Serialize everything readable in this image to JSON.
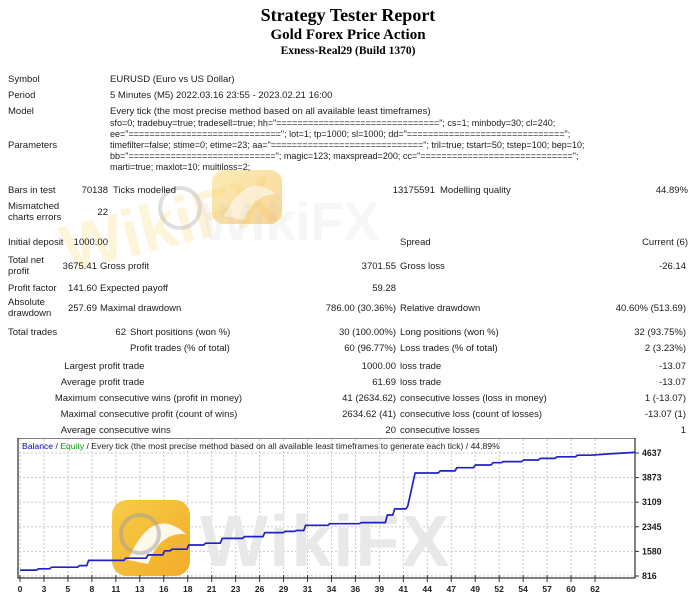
{
  "header": {
    "title": "Strategy Tester Report",
    "ea_name": "Gold Forex Price Action",
    "server_build": "Exness-Real29 (Build 1370)"
  },
  "watermark": {
    "text": "WikiFX"
  },
  "fields": {
    "symbol_label": "Symbol",
    "symbol": "EURUSD (Euro vs US Dollar)",
    "period_label": "Period",
    "period": "5 Minutes (M5) 2022.03.16 23:55 - 2023.02.21 16:00",
    "model_label": "Model",
    "model": "Every tick (the most precise method based on all available least timeframes)",
    "parameters_label": "Parameters",
    "parameters_lines": [
      "sfo=0; tradebuy=true; tradesell=true; hh=\"===============================\"; cs=1; minbody=30; cl=240;",
      "ee=\"=============================\"; lot=1; tp=1000; sl=1000; dd=\"==============================\";",
      "timefilter=false; stime=0; etime=23; aa=\"=============================\"; tril=true; tstart=50; tstep=100; bep=10;",
      "bb=\"============================\"; magic=123; maxspread=200; cc=\"=============================\";",
      "marti=true; maxlot=10; multiloss=2;"
    ],
    "bars_label": "Bars in test",
    "bars": "70138",
    "ticks_label": "Ticks modelled",
    "ticks": "13175591",
    "quality_label": "Modelling quality",
    "quality": "44.89%",
    "mismatch_label": "Mismatched charts errors",
    "mismatch": "22",
    "initial_label": "Initial deposit",
    "initial": "1000.00",
    "spread_label": "Spread",
    "spread_value": "Current (6)",
    "net_label": "Total net profit",
    "net": "3675.41",
    "gross_profit_label": "Gross profit",
    "gross_profit": "3701.55",
    "gross_loss_label": "Gross loss",
    "gross_loss": "-26.14",
    "pf_label": "Profit factor",
    "pf": "141.60",
    "ep_label": "Expected payoff",
    "ep": "59.28",
    "ad_label": "Absolute drawdown",
    "ad": "257.69",
    "md_label": "Maximal drawdown",
    "md": "786.00 (30.36%)",
    "rd_label": "Relative drawdown",
    "rd": "40.60% (513.69)",
    "tt_label": "Total trades",
    "tt": "62",
    "short_label": "Short positions (won %)",
    "short": "30 (100.00%)",
    "long_label": "Long positions (won %)",
    "long": "32 (93.75%)",
    "ptr_label": "Profit trades (% of total)",
    "ptr": "60 (96.77%)",
    "ltr_label": "Loss trades (% of total)",
    "ltr": "2 (3.23%)",
    "largest_label": "Largest",
    "largest_p_label": "profit trade",
    "largest_p": "1000.00",
    "largest_l_label": "loss trade",
    "largest_l": "-13.07",
    "avg_label": "Average",
    "avg_p_label": "profit trade",
    "avg_p": "61.69",
    "avg_l_label": "loss trade",
    "avg_l": "-13.07",
    "maxw_label": "Maximum",
    "maxw_p_label": "consecutive wins (profit in money)",
    "maxw_p": "41 (2634.62)",
    "maxw_l_label": "consecutive losses (loss in money)",
    "maxw_l": "1 (-13.07)",
    "maxc_label": "Maximal",
    "maxc_p_label": "consecutive profit (count of wins)",
    "maxc_p": "2634.62 (41)",
    "maxc_l_label": "consecutive loss (count of losses)",
    "maxc_l": "-13.07 (1)",
    "avgc_label": "Average",
    "avgc_p_label": "consecutive wins",
    "avgc_p": "20",
    "avgc_l_label": "consecutive losses",
    "avgc_l": "1"
  },
  "chart_data": {
    "type": "line",
    "legend": {
      "balance_label": "Balance",
      "equity_label": "Equity",
      "sep": " / ",
      "model_text": "Every tick (the most precise method based on all available least timeframes to generate each tick)",
      "sep2": " / ",
      "quality": "44.89%"
    },
    "xlabel": "",
    "ylabel": "",
    "x_ticks": [
      0,
      3,
      5,
      8,
      11,
      13,
      16,
      18,
      21,
      23,
      26,
      29,
      31,
      34,
      36,
      39,
      41,
      44,
      47,
      49,
      52,
      54,
      57,
      60,
      62
    ],
    "y_ticks": [
      4637,
      3873,
      3109,
      2345,
      1580,
      816
    ],
    "x_range": [
      0,
      66.3
    ],
    "y_range": [
      816,
      5160
    ],
    "grid": true,
    "series": [
      {
        "name": "Balance",
        "color": "#2121c8",
        "points": [
          [
            0,
            1000
          ],
          [
            1.8,
            1000
          ],
          [
            2,
            1040
          ],
          [
            3.2,
            1040
          ],
          [
            3.4,
            1090
          ],
          [
            6.2,
            1090
          ],
          [
            6.4,
            1140
          ],
          [
            7.2,
            1140
          ],
          [
            7.4,
            1300
          ],
          [
            11.2,
            1300
          ],
          [
            11.4,
            1370
          ],
          [
            13.6,
            1370
          ],
          [
            13.8,
            1470
          ],
          [
            15.4,
            1470
          ],
          [
            15.6,
            1600
          ],
          [
            16.2,
            1600
          ],
          [
            16.4,
            1650
          ],
          [
            18,
            1650
          ],
          [
            18.2,
            1780
          ],
          [
            19.8,
            1780
          ],
          [
            20,
            1835
          ],
          [
            21.6,
            1835
          ],
          [
            21.8,
            1985
          ],
          [
            24,
            1985
          ],
          [
            24.2,
            2040
          ],
          [
            26.2,
            2040
          ],
          [
            26.4,
            2165
          ],
          [
            28.4,
            2165
          ],
          [
            28.6,
            2200
          ],
          [
            29.6,
            2200
          ],
          [
            29.8,
            2230
          ],
          [
            30.6,
            2230
          ],
          [
            30.8,
            2390
          ],
          [
            33.2,
            2390
          ],
          [
            33.4,
            2440
          ],
          [
            36.6,
            2440
          ],
          [
            36.8,
            2475
          ],
          [
            39.4,
            2475
          ],
          [
            39.6,
            2710
          ],
          [
            40.2,
            2710
          ],
          [
            40.4,
            2900
          ],
          [
            41.6,
            2900
          ],
          [
            41.8,
            2980
          ],
          [
            42.6,
            4015
          ],
          [
            45.1,
            4015
          ],
          [
            45.3,
            4080
          ],
          [
            46.9,
            4080
          ],
          [
            47.1,
            4180
          ],
          [
            48.9,
            4180
          ],
          [
            49.1,
            4265
          ],
          [
            50.8,
            4265
          ],
          [
            51,
            4335
          ],
          [
            51.9,
            4335
          ],
          [
            52.1,
            4370
          ],
          [
            54.1,
            4370
          ],
          [
            54.3,
            4420
          ],
          [
            55.9,
            4420
          ],
          [
            56.1,
            4470
          ],
          [
            57.7,
            4470
          ],
          [
            57.9,
            4520
          ],
          [
            59.9,
            4520
          ],
          [
            60.1,
            4570
          ],
          [
            61.6,
            4570
          ],
          [
            63.5,
            4610
          ],
          [
            66.3,
            4655
          ]
        ]
      }
    ]
  }
}
